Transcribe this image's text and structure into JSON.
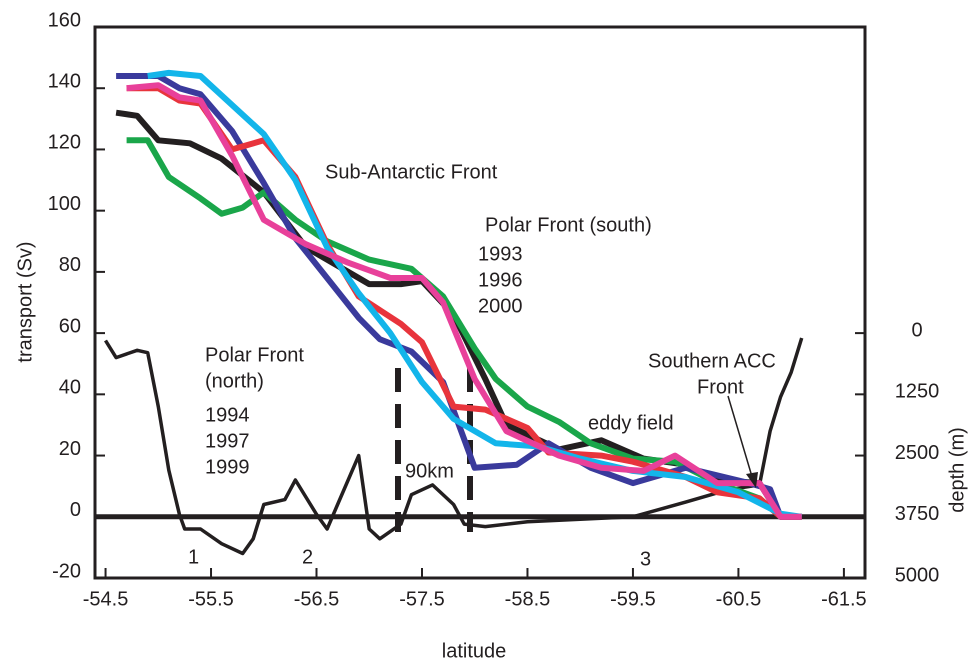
{
  "chart_data": {
    "type": "line",
    "xlabel": "latitude",
    "ylabel": "transport (Sv)",
    "y2label": "depth (m)",
    "xlim": [
      -54.4,
      -61.7
    ],
    "xticks": [
      -54.5,
      -55.5,
      -56.5,
      -57.5,
      -58.5,
      -59.5,
      -60.5,
      -61.5
    ],
    "ylim": [
      -20,
      160
    ],
    "yticks": [
      -20,
      0,
      20,
      40,
      60,
      80,
      100,
      120,
      140,
      160
    ],
    "y2lim": [
      5000,
      -6250
    ],
    "y2ticks": [
      0,
      1250,
      2500,
      3750,
      5000
    ],
    "series": [
      {
        "color": "#231f20",
        "axis": "y2",
        "x": [
          -54.5,
          -54.6,
          -54.8,
          -54.9,
          -55.0,
          -55.1,
          -55.2,
          -55.25,
          -55.4,
          -55.6,
          -55.8,
          -55.9,
          -56.0,
          -56.2,
          -56.3,
          -56.5,
          -56.6,
          -56.7,
          -56.9,
          -57.0,
          -57.1,
          -57.3,
          -57.4,
          -57.6,
          -57.8,
          -57.9,
          -58.1,
          -58.5,
          -59.0,
          -59.5,
          -60.0,
          -60.4,
          -60.7,
          -60.8,
          -60.9,
          -61.0,
          -61.1
        ],
        "values": [
          150,
          500,
          350,
          400,
          1500,
          2800,
          3700,
          4000,
          4000,
          4300,
          4500,
          4200,
          3500,
          3400,
          3000,
          3700,
          4000,
          3500,
          2500,
          4000,
          4200,
          3900,
          3300,
          3100,
          3500,
          3900,
          3950,
          3850,
          3800,
          3750,
          3450,
          3200,
          3100,
          2000,
          1300,
          800,
          100
        ]
      },
      {
        "name": "1993",
        "color": "#231f20",
        "x": [
          -54.6,
          -54.8,
          -55.0,
          -55.3,
          -55.6,
          -56.0,
          -56.4,
          -56.8,
          -57.0,
          -57.3,
          -57.5,
          -57.8,
          -58.1,
          -58.3,
          -58.8,
          -59.2,
          -59.6,
          -60.0,
          -60.3,
          -60.7,
          -60.9,
          -61.1
        ],
        "values": [
          132,
          131,
          123,
          122,
          117,
          106,
          88,
          80,
          76,
          76,
          77,
          66,
          45,
          30,
          22,
          25,
          19,
          17,
          12,
          11,
          0,
          0
        ]
      },
      {
        "name": "1996",
        "color": "#1aa64a",
        "x": [
          -54.7,
          -54.9,
          -55.1,
          -55.4,
          -55.6,
          -55.8,
          -56.0,
          -56.3,
          -56.6,
          -57.0,
          -57.4,
          -57.7,
          -58.0,
          -58.2,
          -58.5,
          -58.8,
          -59.1,
          -59.5,
          -59.9,
          -60.3,
          -60.7,
          -60.9,
          -61.1
        ],
        "values": [
          123,
          123,
          111,
          104,
          99,
          101,
          106,
          97,
          90,
          84,
          81,
          72,
          55,
          45,
          36,
          31,
          24,
          19,
          18,
          11,
          6,
          0,
          0
        ]
      },
      {
        "name": "1997",
        "color": "#3a3a9c",
        "x": [
          -54.6,
          -55.0,
          -55.2,
          -55.4,
          -55.7,
          -56.0,
          -56.3,
          -56.6,
          -56.9,
          -57.1,
          -57.4,
          -57.7,
          -58.0,
          -58.4,
          -58.7,
          -59.1,
          -59.5,
          -60.0,
          -60.6,
          -60.8,
          -60.9,
          -61.1
        ],
        "values": [
          144,
          144,
          140,
          138,
          126,
          109,
          91,
          78,
          65,
          58,
          54,
          44,
          16,
          17,
          24,
          16,
          11,
          16,
          11,
          9,
          0,
          0
        ]
      },
      {
        "name": "1994",
        "color": "#e8343c",
        "x": [
          -54.7,
          -55.0,
          -55.2,
          -55.4,
          -55.7,
          -56.0,
          -56.3,
          -56.6,
          -56.9,
          -57.3,
          -57.5,
          -57.8,
          -58.1,
          -58.5,
          -58.7,
          -59.2,
          -59.5,
          -60.0,
          -60.3,
          -60.7,
          -60.9,
          -61.1
        ],
        "values": [
          140,
          140,
          136,
          135,
          120,
          123,
          111,
          89,
          72,
          63,
          57,
          36,
          35,
          29,
          21,
          20,
          18,
          13,
          8,
          6,
          0,
          0
        ]
      },
      {
        "name": "1999",
        "color": "#13b5ea",
        "x": [
          -54.9,
          -55.1,
          -55.4,
          -56.0,
          -56.3,
          -56.6,
          -56.9,
          -57.2,
          -57.5,
          -57.8,
          -58.2,
          -58.6,
          -59.0,
          -59.5,
          -60.0,
          -60.5,
          -60.9,
          -61.1
        ],
        "values": [
          144,
          145,
          144,
          125,
          110,
          88,
          73,
          60,
          44,
          32,
          24,
          23,
          19,
          15,
          13,
          8,
          1,
          0
        ]
      },
      {
        "name": "2000",
        "color": "#e8409a",
        "x": [
          -54.7,
          -55.0,
          -55.2,
          -55.4,
          -55.7,
          -56.0,
          -56.4,
          -56.8,
          -57.2,
          -57.5,
          -57.7,
          -58.0,
          -58.3,
          -58.8,
          -59.2,
          -59.6,
          -59.9,
          -60.3,
          -60.7,
          -60.9,
          -61.1
        ],
        "values": [
          140,
          141,
          137,
          136,
          118,
          97,
          89,
          83,
          78,
          78,
          70,
          45,
          28,
          20,
          16,
          15,
          20,
          11,
          11,
          0,
          0
        ]
      }
    ],
    "annotations": [
      "Sub-Antarctic Front",
      "Polar Front (south)",
      "Polar Front",
      "(north)",
      "eddy field",
      "Southern ACC",
      "Front",
      "90km",
      "1",
      "2",
      "3"
    ]
  }
}
